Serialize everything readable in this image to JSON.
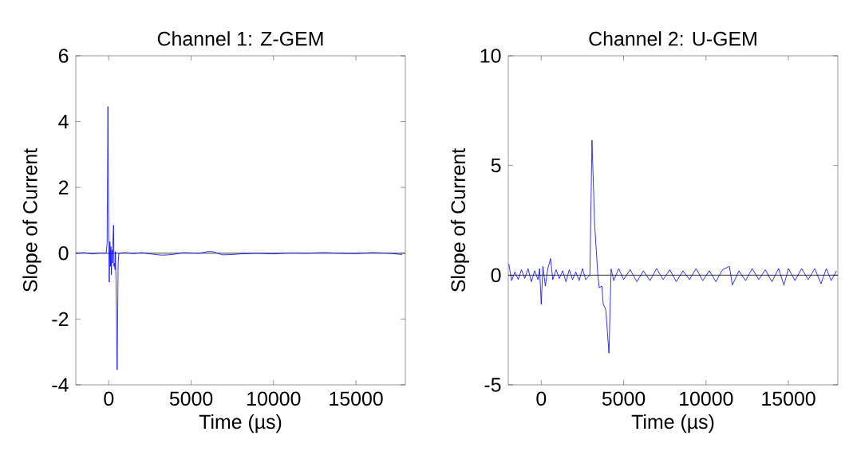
{
  "chart_data": [
    {
      "type": "line",
      "title": "Channel 1: Z-GEM",
      "xlabel": "Time (µs)",
      "ylabel": "Slope of Current",
      "xlim": [
        -2000,
        18000
      ],
      "ylim": [
        -4,
        6
      ],
      "xticks": [
        0,
        5000,
        10000,
        15000
      ],
      "yticks": [
        -4,
        -2,
        0,
        2,
        4,
        6
      ],
      "series": [
        {
          "color": "#0000ff",
          "x": [
            -2000,
            -1500,
            -1000,
            -500,
            -160,
            -100,
            -50,
            0,
            30,
            70,
            100,
            130,
            160,
            200,
            225,
            260,
            290,
            320,
            350,
            380,
            400,
            440,
            510,
            570,
            610,
            1000,
            1500,
            2000,
            2500,
            3200,
            3600,
            4000,
            4500,
            5000,
            5500,
            6000,
            6300,
            6600,
            6900,
            7500,
            8000,
            9000,
            10000,
            11000,
            12000,
            13000,
            14000,
            15000,
            16000,
            17000,
            17800
          ],
          "values": [
            0,
            0.02,
            -0.02,
            0.01,
            0,
            0.3,
            4.46,
            0.3,
            -0.88,
            0.35,
            -0.4,
            0.2,
            -0.65,
            0.1,
            -0.3,
            0.5,
            0.85,
            -0.4,
            -0.3,
            -0.5,
            0.05,
            -0.8,
            -3.54,
            -0.3,
            0,
            0.02,
            -0.01,
            0.02,
            -0.02,
            -0.06,
            -0.05,
            -0.03,
            0.02,
            0.01,
            0,
            0.05,
            0.05,
            0,
            -0.05,
            -0.04,
            -0.02,
            0,
            -0.02,
            0.01,
            0,
            0.02,
            0,
            -0.01,
            0.02,
            0,
            -0.04
          ]
        }
      ],
      "ref_lines": [
        {
          "axis": "y",
          "value": 0,
          "color": "#000000"
        }
      ]
    },
    {
      "type": "line",
      "title": "Channel 2: U-GEM",
      "xlabel": "Time (µs)",
      "ylabel": "Slope of Current",
      "xlim": [
        -2000,
        18000
      ],
      "ylim": [
        -5,
        10
      ],
      "xticks": [
        0,
        5000,
        10000,
        15000
      ],
      "yticks": [
        -5,
        0,
        5,
        10
      ],
      "series": [
        {
          "color": "#0000ff",
          "x": [
            -1970,
            -1800,
            -1600,
            -1400,
            -1200,
            -1000,
            -800,
            -600,
            -400,
            -200,
            -100,
            0,
            100,
            250,
            400,
            565,
            700,
            900,
            1100,
            1300,
            1500,
            1700,
            1900,
            2100,
            2300,
            2500,
            2700,
            2950,
            3080,
            3240,
            3435,
            3520,
            3680,
            3760,
            3920,
            4110,
            4240,
            4400,
            4700,
            5000,
            5400,
            5800,
            6200,
            6600,
            7000,
            7400,
            7800,
            8200,
            8600,
            9000,
            9400,
            9800,
            10200,
            10600,
            11000,
            11420,
            11600,
            12000,
            12400,
            12800,
            13200,
            13600,
            14000,
            14400,
            14730,
            15000,
            15400,
            15800,
            16200,
            16600,
            16980,
            17300,
            17600,
            17920
          ],
          "values": [
            0.52,
            -0.25,
            0.15,
            -0.2,
            0.25,
            -0.15,
            0.3,
            -0.3,
            0.2,
            -0.2,
            0.3,
            -1.33,
            0.4,
            -0.5,
            0.3,
            0.76,
            -0.2,
            0.25,
            -0.15,
            0.2,
            -0.3,
            0.25,
            -0.2,
            0.15,
            -0.25,
            0.3,
            -0.2,
            0,
            6.15,
            2.34,
            0,
            -0.57,
            -0.5,
            -1.3,
            -1.6,
            -3.56,
            0.28,
            -0.25,
            0.3,
            -0.2,
            0.25,
            -0.3,
            0.2,
            -0.25,
            0.3,
            -0.2,
            0.25,
            -0.3,
            0.2,
            -0.2,
            0.3,
            -0.25,
            0.2,
            -0.3,
            0.25,
            0.4,
            -0.45,
            0.2,
            -0.25,
            0.3,
            -0.2,
            0.25,
            -0.3,
            0.3,
            -0.45,
            0.3,
            -0.25,
            0.3,
            -0.2,
            0.3,
            -0.39,
            0.3,
            -0.25,
            0.2
          ]
        }
      ],
      "ref_lines": [
        {
          "axis": "y",
          "value": 0,
          "color": "#000000"
        }
      ]
    }
  ]
}
